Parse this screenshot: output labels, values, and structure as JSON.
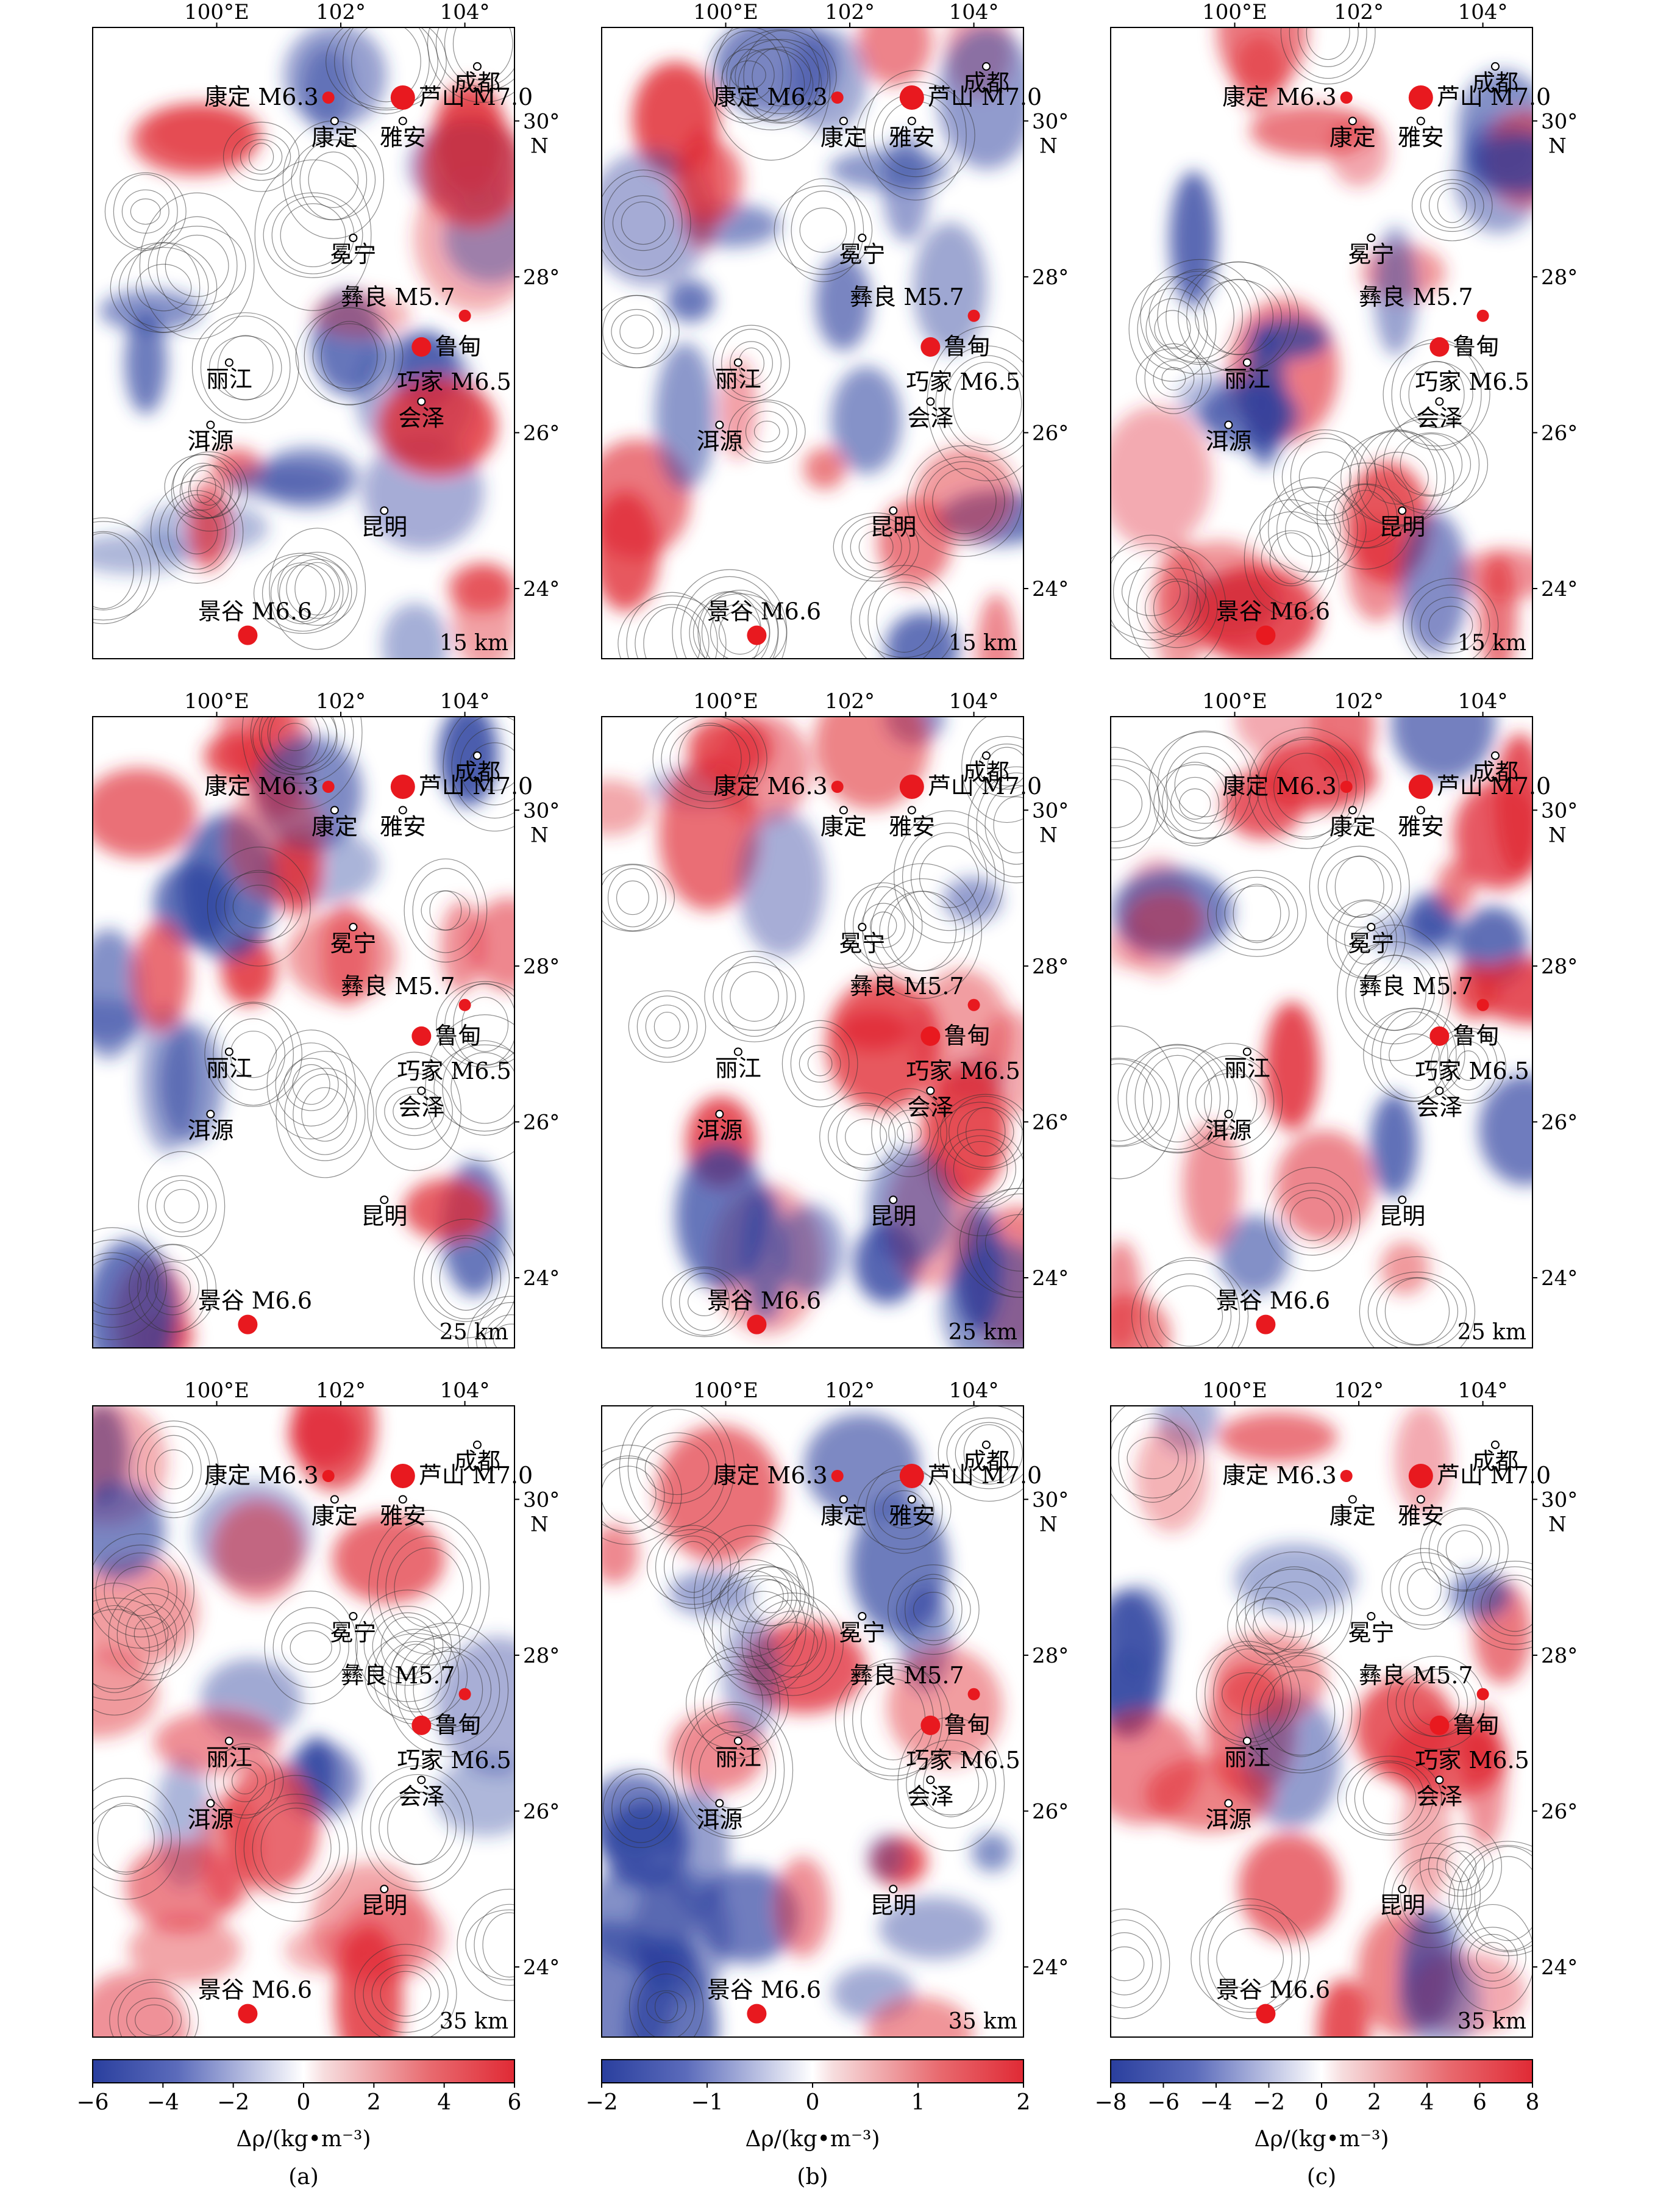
{
  "figure": {
    "panel_labels": [
      "(a)",
      "(b)",
      "(c)"
    ],
    "depth_labels": [
      "15 km",
      "25 km",
      "35 km"
    ],
    "lon_ticks": [
      "100°E",
      "102°",
      "104°"
    ],
    "lat_ticks": [
      "30°",
      "28°",
      "26°",
      "24°"
    ],
    "lat_axis_letter": "N",
    "colorbar_title": "Δρ/(kg•m⁻³)",
    "colorbars": [
      {
        "ticks": [
          "−6",
          "−4",
          "−2",
          "0",
          "2",
          "4",
          "6"
        ],
        "range": [
          -6,
          6
        ]
      },
      {
        "ticks": [
          "−2",
          "−1",
          "0",
          "1",
          "2"
        ],
        "range": [
          -2,
          2
        ]
      },
      {
        "ticks": [
          "−8",
          "−6",
          "−4",
          "−2",
          "0",
          "2",
          "4",
          "6",
          "8"
        ],
        "range": [
          -8,
          8
        ]
      }
    ],
    "colors": {
      "negative": "#2a3f9e",
      "positive": "#e02a35",
      "neutral": "#ffffff",
      "epicenter": "#e8191f"
    }
  },
  "cities": [
    {
      "name": "成都",
      "lon": 104.2,
      "lat": 30.7
    },
    {
      "name": "康定",
      "lon": 101.9,
      "lat": 30.0
    },
    {
      "name": "雅安",
      "lon": 103.0,
      "lat": 30.0
    },
    {
      "name": "冕宁",
      "lon": 102.2,
      "lat": 28.5
    },
    {
      "name": "丽江",
      "lon": 100.2,
      "lat": 26.9
    },
    {
      "name": "洱源",
      "lon": 99.9,
      "lat": 26.1
    },
    {
      "name": "会泽",
      "lon": 103.3,
      "lat": 26.4
    },
    {
      "name": "昆明",
      "lon": 102.7,
      "lat": 25.0
    }
  ],
  "earthquakes": [
    {
      "name": "芦山",
      "magnitude": "7.0",
      "lon": 103.0,
      "lat": 30.3,
      "size": "large"
    },
    {
      "name": "康定",
      "magnitude": "6.3",
      "lon": 101.8,
      "lat": 30.3,
      "size": "small"
    },
    {
      "name": "彝良",
      "magnitude": "5.7",
      "lon": 104.0,
      "lat": 27.5,
      "size": "small"
    },
    {
      "name": "鲁甸",
      "magnitude": "",
      "lon": 103.3,
      "lat": 27.1,
      "size": "medium"
    },
    {
      "name": "巧家",
      "magnitude": "6.5",
      "lon": 103.3,
      "lat": 27.1,
      "size": "medium"
    },
    {
      "name": "景谷",
      "magnitude": "6.6",
      "lon": 100.5,
      "lat": 23.4,
      "size": "medium"
    }
  ]
}
